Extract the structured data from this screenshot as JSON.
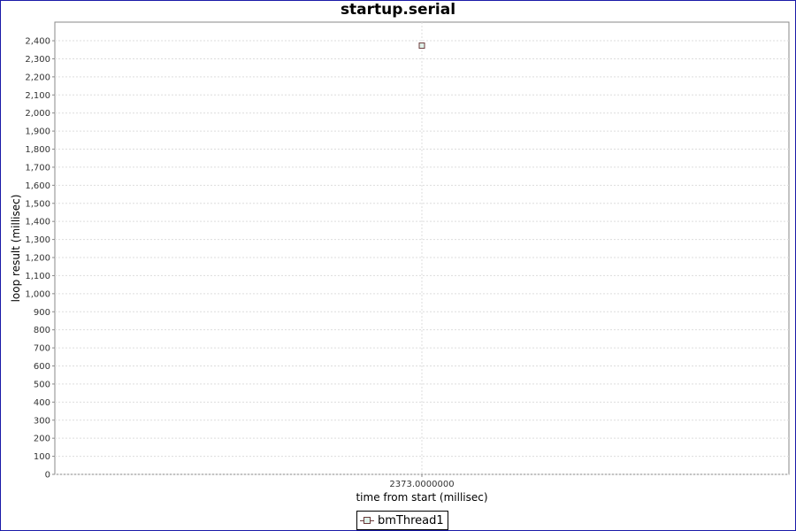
{
  "chart_data": {
    "type": "scatter",
    "title": "startup.serial",
    "xlabel": "time from start (millisec)",
    "ylabel": "loop result (millisec)",
    "x_tick_labels": [
      "2373.0000000"
    ],
    "y_ticks": [
      0,
      100,
      200,
      300,
      400,
      500,
      600,
      700,
      800,
      900,
      1000,
      1100,
      1200,
      1300,
      1400,
      1500,
      1600,
      1700,
      1800,
      1900,
      2000,
      2100,
      2200,
      2300,
      2400
    ],
    "ylim": [
      0,
      2503
    ],
    "grid": true,
    "legend_placement": "bottom",
    "series": [
      {
        "name": "bmThread1",
        "color": "#6b3a3a",
        "fill": "#dff2ea",
        "marker": "square",
        "points": [
          {
            "x": 2373,
            "y": 2373
          }
        ]
      }
    ]
  }
}
